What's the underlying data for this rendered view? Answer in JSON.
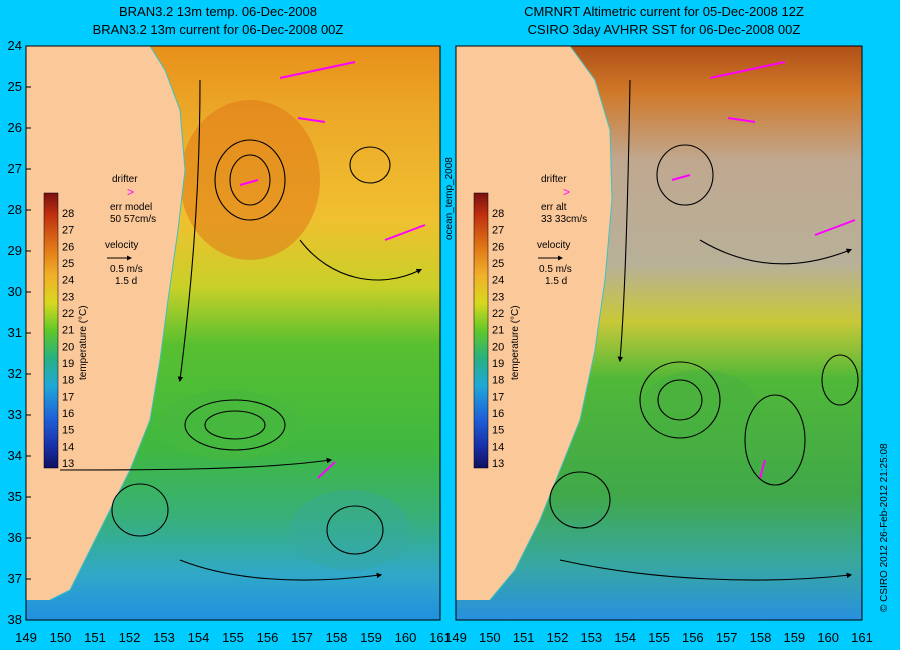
{
  "background_color": "#00ccff",
  "land_color": "#fbc89a",
  "left_panel": {
    "title_line1": "BRAN3.2 13m temp. 06-Dec-2008",
    "title_line2": "BRAN3.2 13m current for 06-Dec-2008 00Z",
    "drifter_label": "drifter",
    "err_label": "err model",
    "err_value": "50 57cm/s",
    "velocity_label": "velocity",
    "velocity_speed": "0.5 m/s",
    "velocity_days": "1.5 d"
  },
  "right_panel": {
    "title_line1": "CMRNRT Altimetric current for 05-Dec-2008 12Z",
    "title_line2": "CSIRO 3day AVHRR SST for 06-Dec-2008 00Z",
    "drifter_label": "drifter",
    "err_label": "err alt",
    "err_value": "33 33cm/s",
    "velocity_label": "velocity",
    "velocity_speed": "0.5 m/s",
    "velocity_days": "1.5 d"
  },
  "middle_label": "ocean_temp_2008",
  "colorbar": {
    "label": "temperature (°C)",
    "ticks": [
      "28",
      "27",
      "26",
      "25",
      "24",
      "23",
      "22",
      "21",
      "20",
      "19",
      "18",
      "17",
      "16",
      "15",
      "14",
      "13"
    ]
  },
  "lat_ticks": [
    "24",
    "25",
    "26",
    "27",
    "28",
    "29",
    "30",
    "31",
    "32",
    "33",
    "34",
    "35",
    "36",
    "37",
    "38"
  ],
  "lon_ticks": [
    "149",
    "150",
    "151",
    "152",
    "153",
    "154",
    "155",
    "156",
    "157",
    "158",
    "159",
    "160",
    "161"
  ],
  "credit": "© CSIRO 2012   26-Feb-2012 21:25:08"
}
